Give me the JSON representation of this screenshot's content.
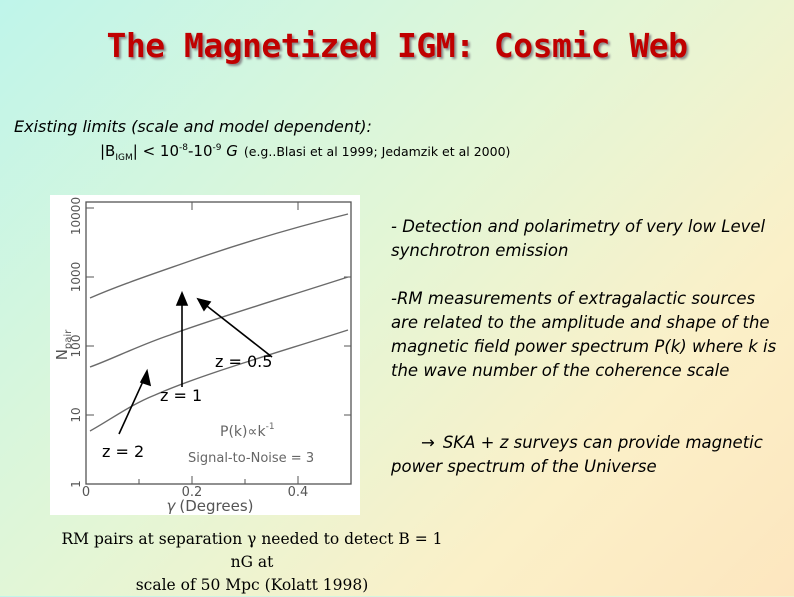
{
  "title": "The Magnetized IGM: Cosmic Web",
  "limits": {
    "intro": "Existing limits (scale and model dependent):",
    "b_prefix": "|B",
    "b_sub": "IGM",
    "b_rest": "| < 10",
    "exp1": "-8",
    "dash": "-10",
    "exp2": "-9",
    "unit": " G",
    "citation": "(e.g..Blasi et al 1999; Jedamzik et al 2000)"
  },
  "bullets": {
    "b1": "- Detection and polarimetry of very low Level synchrotron emission",
    "b2": "-RM measurements of extragalactic sources are related to the amplitude and shape of the magnetic field power spectrum P(k) where k is the wave number of the coherence scale",
    "b3_arrow": "→",
    "b3": "SKA + z surveys can provide magnetic power spectrum of the Universe"
  },
  "plot": {
    "ylabel": "N",
    "ylabel_sub": "pair",
    "xlabel_symbol": "γ",
    "xlabel": "(Degrees)",
    "xticks": [
      "0",
      "0.2",
      "0.4"
    ],
    "yticks": [
      "1",
      "10",
      "100",
      "1000",
      "10000"
    ],
    "annotation_pk": "P(k)∝k",
    "annotation_pk_exp": "-1",
    "annotation_snr": "Signal-to-Noise = 3",
    "labels": {
      "z05": "z = 0.5",
      "z1": "z = 1",
      "z2": "z = 2"
    }
  },
  "caption": {
    "line1": "RM pairs at separation γ needed to detect B = 1 nG  at",
    "line2": "scale of 50 Mpc (Kolatt 1998)"
  }
}
